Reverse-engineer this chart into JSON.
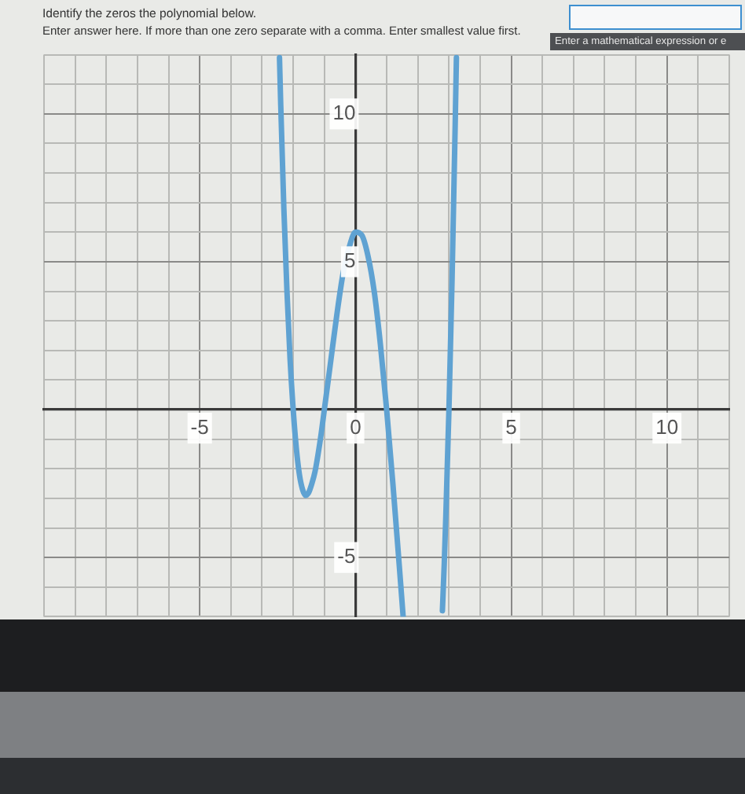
{
  "chart_data": {
    "type": "line",
    "title": "Identify the zeros the polynomial below.",
    "subtitle": "Enter answer here. If more than one zero separate with a comma. Enter smallest value first.",
    "annotations": [
      "Enter a mathematical expression or e"
    ],
    "x": [
      -2.44,
      -2.4,
      -2.3,
      -2.2,
      -2.1,
      -2.0,
      -1.9,
      -1.8,
      -1.7,
      -1.6,
      -1.5,
      -1.4,
      -1.3,
      -1.2,
      -1.1,
      -1.0,
      -0.8,
      -0.6,
      -0.4,
      -0.2,
      0,
      0.2,
      0.4,
      0.6,
      0.8,
      1.0,
      1.2,
      1.4,
      1.53,
      2.15,
      2.79,
      2.85,
      2.9,
      3.0,
      3.1,
      3.2,
      3.24
    ],
    "series": [
      {
        "color": "#5fa2d2",
        "values": [
          11.9,
          10.3,
          6.8,
          4.0,
          1.7,
          0,
          -1.3,
          -2.2,
          -2.7,
          -2.9,
          -2.8,
          -2.5,
          -2.1,
          -1.5,
          -0.8,
          0,
          1.6,
          3.2,
          4.6,
          5.5,
          6,
          5.9,
          5.2,
          4.0,
          2.2,
          0,
          -2.5,
          -5.2,
          -7.0,
          null,
          -6.8,
          -5.2,
          -3.6,
          0,
          4.4,
          9.6,
          11.9
        ]
      }
    ],
    "xlim": [
      -10,
      12
    ],
    "ylim": [
      -7,
      12
    ],
    "xticks": [
      {
        "value": -10,
        "label": null
      },
      {
        "value": -9,
        "label": null
      },
      {
        "value": -8,
        "label": null
      },
      {
        "value": -7,
        "label": null
      },
      {
        "value": -6,
        "label": null
      },
      -5,
      {
        "value": -4,
        "label": null
      },
      {
        "value": -3,
        "label": null
      },
      {
        "value": -2,
        "label": null
      },
      {
        "value": -1,
        "label": null
      },
      0,
      {
        "value": 1,
        "label": null
      },
      {
        "value": 2,
        "label": null
      },
      {
        "value": 3,
        "label": null
      },
      {
        "value": 4,
        "label": null
      },
      5,
      {
        "value": 6,
        "label": null
      },
      {
        "value": 7,
        "label": null
      },
      {
        "value": 8,
        "label": null
      },
      {
        "value": 9,
        "label": null
      },
      10,
      {
        "value": 11,
        "label": null
      },
      {
        "value": 12,
        "label": null
      }
    ],
    "yticks": [
      {
        "value": -7,
        "label": null
      },
      {
        "value": -6,
        "label": null
      },
      -5,
      {
        "value": -4,
        "label": null
      },
      {
        "value": -3,
        "label": null
      },
      {
        "value": -2,
        "label": null
      },
      {
        "value": -1,
        "label": null
      },
      {
        "value": 0,
        "label": null
      },
      {
        "value": 1,
        "label": null
      },
      {
        "value": 2,
        "label": null
      },
      {
        "value": 3,
        "label": null
      },
      {
        "value": 4,
        "label": null
      },
      5,
      {
        "value": 6,
        "label": null
      },
      {
        "value": 7,
        "label": null
      },
      {
        "value": 8,
        "label": null
      },
      {
        "value": 9,
        "label": null
      },
      10,
      {
        "value": 11,
        "label": null
      },
      {
        "value": 12,
        "label": null
      }
    ],
    "grid": true,
    "marker": "none",
    "line_style": "solid"
  }
}
